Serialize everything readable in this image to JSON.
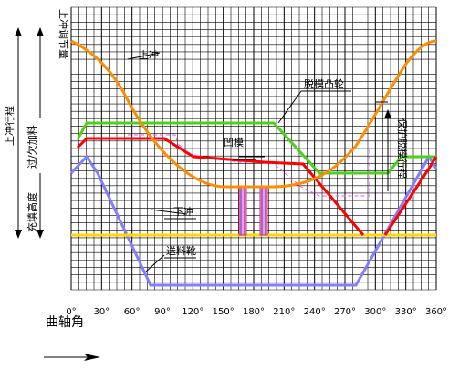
{
  "labels": {
    "upper_punch": "上冲",
    "stripping_cam": "脱模凸轮",
    "die": "凹模",
    "lower_punch": "下冲",
    "feed_shoe": "送料靴",
    "upper_punch_adjust": "上冲调节量",
    "upper_punch_stroke": "上冲行程",
    "over_under_fill": "过/欠加料",
    "fill_height": "充填高度",
    "protect_stripping_stroke": "保护脱模行程"
  },
  "x_axis": {
    "ticks": [
      "0°",
      "30°",
      "60°",
      "90°",
      "120°",
      "150°",
      "180°",
      "210°",
      "240°",
      "270°",
      "300°",
      "330°",
      "360°"
    ],
    "label": "曲轴角"
  },
  "colors": {
    "upper_punch": "#ff8c00",
    "stripping_cam": "#4bd11c",
    "die": "#ff0000",
    "lower_punch": "#ffd700",
    "feed_shoe": "#8080ff",
    "die_dash": "#ff44ff",
    "grid": "#000000"
  }
}
